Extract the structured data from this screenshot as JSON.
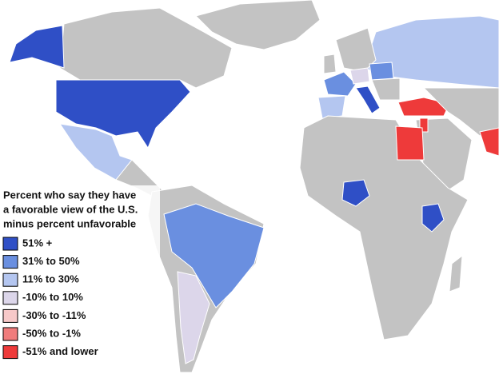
{
  "legend": {
    "title_lines": [
      "Percent who say they have",
      "a favorable view of the U.S.",
      "minus percent unfavorable"
    ],
    "items": [
      {
        "label": "51% +",
        "color": "#2f4fc6"
      },
      {
        "label": "31% to 50%",
        "color": "#6a8fe0"
      },
      {
        "label": "11% to 30%",
        "color": "#b4c6f0"
      },
      {
        "label": "-10% to 10%",
        "color": "#dcd6ea"
      },
      {
        "label": "-30% to -11%",
        "color": "#f7c9c9"
      },
      {
        "label": "-50% to -1%",
        "color": "#f07c7c"
      },
      {
        "label": "-51% and lower",
        "color": "#ee3a3a"
      }
    ]
  }
}
